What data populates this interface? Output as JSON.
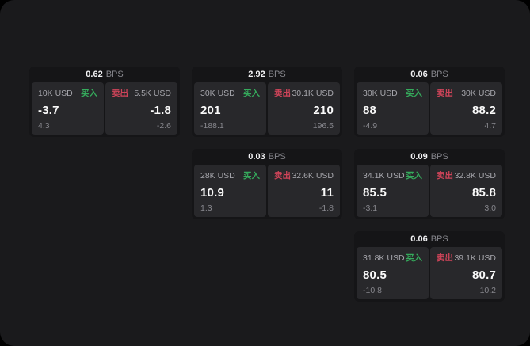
{
  "labels": {
    "bps_unit": "BPS",
    "buy": "买入",
    "sell": "卖出"
  },
  "colors": {
    "surface_bg": "#1a1a1c",
    "card_bg": "#151517",
    "panel_bg": "#28282b",
    "buy_green": "#35ab5c",
    "sell_red": "#cf4459"
  },
  "cards": [
    {
      "bps": "0.62",
      "buy": {
        "amount": "10K USD",
        "price": "-3.7",
        "delta": "4.3"
      },
      "sell": {
        "amount": "5.5K USD",
        "price": "-1.8",
        "delta": "-2.6"
      }
    },
    {
      "bps": "2.92",
      "buy": {
        "amount": "30K USD",
        "price": "201",
        "delta": "-188.1"
      },
      "sell": {
        "amount": "30.1K USD",
        "price": "210",
        "delta": "196.5"
      }
    },
    {
      "bps": "0.06",
      "buy": {
        "amount": "30K USD",
        "price": "88",
        "delta": "-4.9"
      },
      "sell": {
        "amount": "30K USD",
        "price": "88.2",
        "delta": "4.7"
      }
    },
    {
      "bps": "0.03",
      "buy": {
        "amount": "28K USD",
        "price": "10.9",
        "delta": "1.3"
      },
      "sell": {
        "amount": "32.6K USD",
        "price": "11",
        "delta": "-1.8"
      }
    },
    {
      "bps": "0.09",
      "buy": {
        "amount": "34.1K USD",
        "price": "85.5",
        "delta": "-3.1"
      },
      "sell": {
        "amount": "32.8K USD",
        "price": "85.8",
        "delta": "3.0"
      }
    },
    {
      "bps": "0.06",
      "buy": {
        "amount": "31.8K USD",
        "price": "80.5",
        "delta": "-10.8"
      },
      "sell": {
        "amount": "39.1K USD",
        "price": "80.7",
        "delta": "10.2"
      }
    }
  ]
}
